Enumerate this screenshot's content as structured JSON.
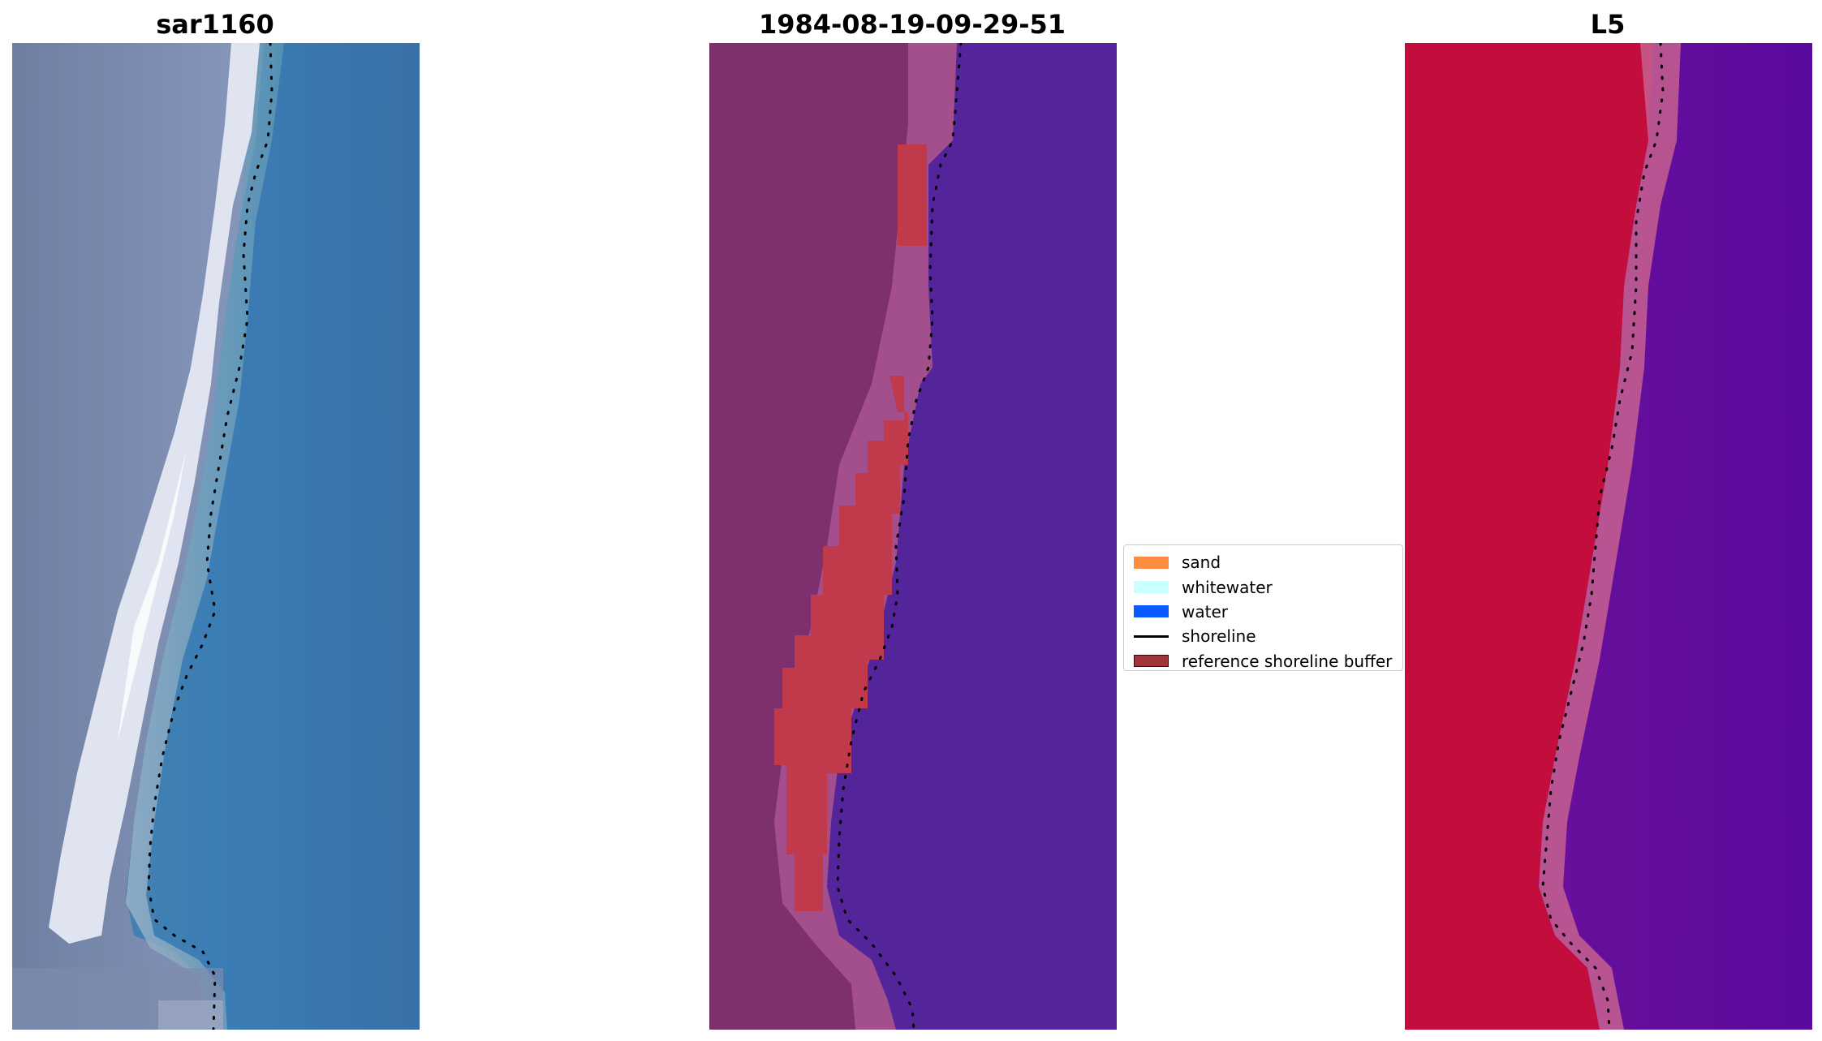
{
  "panels": [
    {
      "title": "sar1160"
    },
    {
      "title": "1984-08-19-09-29-51"
    },
    {
      "title": "L5"
    }
  ],
  "legend": {
    "items": [
      {
        "label": "sand",
        "color": "#ff8c3f",
        "kind": "patch"
      },
      {
        "label": "whitewater",
        "color": "#c8ffff",
        "kind": "patch"
      },
      {
        "label": "water",
        "color": "#0a5aff",
        "kind": "patch"
      },
      {
        "label": "shoreline",
        "color": "#000000",
        "kind": "line"
      },
      {
        "label": "reference shoreline buffer",
        "color": "#a0353a",
        "kind": "patch"
      }
    ]
  },
  "colors": {
    "rgb_beach": "#e8ecf4",
    "rgb_land": "#7886a8",
    "rgb_water": "#3a78ae",
    "class_land": "#7e2f6e",
    "class_sand_transition": "#b05a98",
    "class_buffer": "#c03a4c",
    "class_water": "#54259a",
    "ndwi_land": "#c30d3c",
    "ndwi_water": "#5d0a9e",
    "ndwi_transition": "#c86090"
  }
}
